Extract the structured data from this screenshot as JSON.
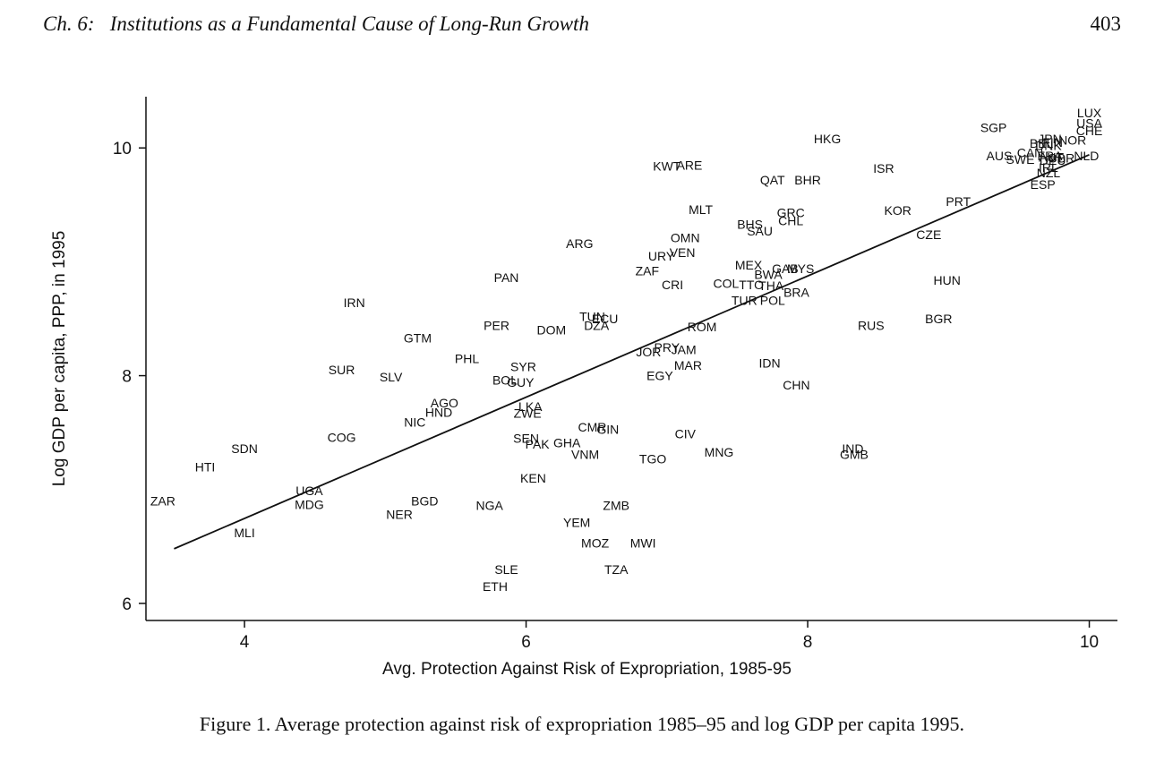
{
  "header": {
    "running_head": "Ch. 6:   Institutions as a Fundamental Cause of Long-Run Growth",
    "page_number": "403"
  },
  "caption": "Figure 1.  Average protection against risk of expropriation 1985–95 and log GDP per capita 1995.",
  "chart_data": {
    "type": "scatter",
    "title": "",
    "xlabel": "Avg. Protection Against Risk of Expropriation, 1985-95",
    "ylabel": "Log GDP per capita, PPP, in 1995",
    "xlim": [
      3.3,
      10.2
    ],
    "ylim": [
      5.85,
      10.45
    ],
    "xticks": [
      4,
      6,
      8,
      10
    ],
    "yticks": [
      6,
      8,
      10
    ],
    "grid": false,
    "fit_line": {
      "x": [
        3.5,
        10.0
      ],
      "y": [
        6.48,
        9.94
      ]
    },
    "points": [
      {
        "label": "LUX",
        "x": 10.0,
        "y": 10.31
      },
      {
        "label": "USA",
        "x": 10.0,
        "y": 10.22
      },
      {
        "label": "CHE",
        "x": 10.0,
        "y": 10.15
      },
      {
        "label": "NOR",
        "x": 9.88,
        "y": 10.07
      },
      {
        "label": "NLD",
        "x": 9.98,
        "y": 9.93
      },
      {
        "label": "SGP",
        "x": 9.32,
        "y": 10.18
      },
      {
        "label": "HKG",
        "x": 8.14,
        "y": 10.08
      },
      {
        "label": "JPN",
        "x": 9.72,
        "y": 10.08
      },
      {
        "label": "BEL",
        "x": 9.66,
        "y": 10.04
      },
      {
        "label": "DNK",
        "x": 9.71,
        "y": 10.02
      },
      {
        "label": "FIN",
        "x": 9.74,
        "y": 10.05
      },
      {
        "label": "AUS",
        "x": 9.36,
        "y": 9.93
      },
      {
        "label": "CAN",
        "x": 9.58,
        "y": 9.96
      },
      {
        "label": "SWE",
        "x": 9.51,
        "y": 9.9
      },
      {
        "label": "FRA",
        "x": 9.72,
        "y": 9.93
      },
      {
        "label": "GBR",
        "x": 9.8,
        "y": 9.91
      },
      {
        "label": "DEU",
        "x": 9.74,
        "y": 9.89
      },
      {
        "label": "AUT",
        "x": 9.73,
        "y": 9.92
      },
      {
        "label": "IRL",
        "x": 9.71,
        "y": 9.83
      },
      {
        "label": "NZL",
        "x": 9.71,
        "y": 9.78
      },
      {
        "label": "ISR",
        "x": 8.54,
        "y": 9.82
      },
      {
        "label": "KWT",
        "x": 7.0,
        "y": 9.84
      },
      {
        "label": "ARE",
        "x": 7.16,
        "y": 9.85
      },
      {
        "label": "QAT",
        "x": 7.75,
        "y": 9.72
      },
      {
        "label": "BHR",
        "x": 8.0,
        "y": 9.72
      },
      {
        "label": "ESP",
        "x": 9.67,
        "y": 9.68
      },
      {
        "label": "PRT",
        "x": 9.07,
        "y": 9.53
      },
      {
        "label": "KOR",
        "x": 8.64,
        "y": 9.45
      },
      {
        "label": "MLT",
        "x": 7.24,
        "y": 9.46
      },
      {
        "label": "GRC",
        "x": 7.88,
        "y": 9.43
      },
      {
        "label": "CHL",
        "x": 7.88,
        "y": 9.36
      },
      {
        "label": "BHS",
        "x": 7.59,
        "y": 9.33
      },
      {
        "label": "SAU",
        "x": 7.66,
        "y": 9.27
      },
      {
        "label": "CZE",
        "x": 8.86,
        "y": 9.24
      },
      {
        "label": "OMN",
        "x": 7.13,
        "y": 9.21
      },
      {
        "label": "ARG",
        "x": 6.38,
        "y": 9.16
      },
      {
        "label": "VEN",
        "x": 7.11,
        "y": 9.08
      },
      {
        "label": "URY",
        "x": 6.96,
        "y": 9.05
      },
      {
        "label": "ZAF",
        "x": 6.86,
        "y": 8.92
      },
      {
        "label": "MEX",
        "x": 7.58,
        "y": 8.97
      },
      {
        "label": "GAB",
        "x": 7.84,
        "y": 8.94
      },
      {
        "label": "MYS",
        "x": 7.95,
        "y": 8.94
      },
      {
        "label": "BWA",
        "x": 7.72,
        "y": 8.89
      },
      {
        "label": "COL",
        "x": 7.42,
        "y": 8.81
      },
      {
        "label": "TTO",
        "x": 7.6,
        "y": 8.8
      },
      {
        "label": "THA",
        "x": 7.74,
        "y": 8.79
      },
      {
        "label": "CRI",
        "x": 7.04,
        "y": 8.8
      },
      {
        "label": "PAN",
        "x": 5.86,
        "y": 8.86
      },
      {
        "label": "HUN",
        "x": 8.99,
        "y": 8.84
      },
      {
        "label": "BRA",
        "x": 7.92,
        "y": 8.73
      },
      {
        "label": "TUR",
        "x": 7.55,
        "y": 8.66
      },
      {
        "label": "POL",
        "x": 7.75,
        "y": 8.66
      },
      {
        "label": "IRN",
        "x": 4.78,
        "y": 8.64
      },
      {
        "label": "TUN",
        "x": 6.47,
        "y": 8.52
      },
      {
        "label": "ECU",
        "x": 6.56,
        "y": 8.5
      },
      {
        "label": "DZA",
        "x": 6.5,
        "y": 8.44
      },
      {
        "label": "BGR",
        "x": 8.93,
        "y": 8.5
      },
      {
        "label": "PER",
        "x": 5.79,
        "y": 8.44
      },
      {
        "label": "DOM",
        "x": 6.18,
        "y": 8.4
      },
      {
        "label": "RUS",
        "x": 8.45,
        "y": 8.44
      },
      {
        "label": "ROM",
        "x": 7.25,
        "y": 8.43
      },
      {
        "label": "GTM",
        "x": 5.23,
        "y": 8.33
      },
      {
        "label": "PRY",
        "x": 7.0,
        "y": 8.25
      },
      {
        "label": "JAM",
        "x": 7.12,
        "y": 8.23
      },
      {
        "label": "JOR",
        "x": 6.87,
        "y": 8.21
      },
      {
        "label": "PHL",
        "x": 5.58,
        "y": 8.15
      },
      {
        "label": "MAR",
        "x": 7.15,
        "y": 8.09
      },
      {
        "label": "IDN",
        "x": 7.73,
        "y": 8.11
      },
      {
        "label": "SYR",
        "x": 5.98,
        "y": 8.08
      },
      {
        "label": "SUR",
        "x": 4.69,
        "y": 8.05
      },
      {
        "label": "SLV",
        "x": 5.04,
        "y": 7.99
      },
      {
        "label": "EGY",
        "x": 6.95,
        "y": 8.0
      },
      {
        "label": "BOL",
        "x": 5.85,
        "y": 7.96
      },
      {
        "label": "GUY",
        "x": 5.96,
        "y": 7.94
      },
      {
        "label": "CHN",
        "x": 7.92,
        "y": 7.92
      },
      {
        "label": "AGO",
        "x": 5.42,
        "y": 7.76
      },
      {
        "label": "LKA",
        "x": 6.03,
        "y": 7.73
      },
      {
        "label": "HND",
        "x": 5.38,
        "y": 7.68
      },
      {
        "label": "ZWE",
        "x": 6.01,
        "y": 7.67
      },
      {
        "label": "NIC",
        "x": 5.21,
        "y": 7.59
      },
      {
        "label": "CMR",
        "x": 6.47,
        "y": 7.55
      },
      {
        "label": "GIN",
        "x": 6.58,
        "y": 7.53
      },
      {
        "label": "CIV",
        "x": 7.13,
        "y": 7.49
      },
      {
        "label": "COG",
        "x": 4.69,
        "y": 7.46
      },
      {
        "label": "SEN",
        "x": 6.0,
        "y": 7.45
      },
      {
        "label": "PAK",
        "x": 6.08,
        "y": 7.4
      },
      {
        "label": "GHA",
        "x": 6.29,
        "y": 7.41
      },
      {
        "label": "IND",
        "x": 8.32,
        "y": 7.36
      },
      {
        "label": "SDN",
        "x": 4.0,
        "y": 7.36
      },
      {
        "label": "GMB",
        "x": 8.33,
        "y": 7.31
      },
      {
        "label": "MNG",
        "x": 7.37,
        "y": 7.33
      },
      {
        "label": "VNM",
        "x": 6.42,
        "y": 7.31
      },
      {
        "label": "TGO",
        "x": 6.9,
        "y": 7.27
      },
      {
        "label": "HTI",
        "x": 3.72,
        "y": 7.2
      },
      {
        "label": "KEN",
        "x": 6.05,
        "y": 7.1
      },
      {
        "label": "UGA",
        "x": 4.46,
        "y": 6.99
      },
      {
        "label": "BGD",
        "x": 5.28,
        "y": 6.9
      },
      {
        "label": "ZAR",
        "x": 3.42,
        "y": 6.9
      },
      {
        "label": "MDG",
        "x": 4.46,
        "y": 6.87
      },
      {
        "label": "NGA",
        "x": 5.74,
        "y": 6.86
      },
      {
        "label": "ZMB",
        "x": 6.64,
        "y": 6.86
      },
      {
        "label": "NER",
        "x": 5.1,
        "y": 6.78
      },
      {
        "label": "YEM",
        "x": 6.36,
        "y": 6.71
      },
      {
        "label": "MLI",
        "x": 4.0,
        "y": 6.62
      },
      {
        "label": "MOZ",
        "x": 6.49,
        "y": 6.53
      },
      {
        "label": "MWI",
        "x": 6.83,
        "y": 6.53
      },
      {
        "label": "TZA",
        "x": 6.64,
        "y": 6.3
      },
      {
        "label": "SLE",
        "x": 5.86,
        "y": 6.3
      },
      {
        "label": "ETH",
        "x": 5.78,
        "y": 6.15
      }
    ]
  }
}
